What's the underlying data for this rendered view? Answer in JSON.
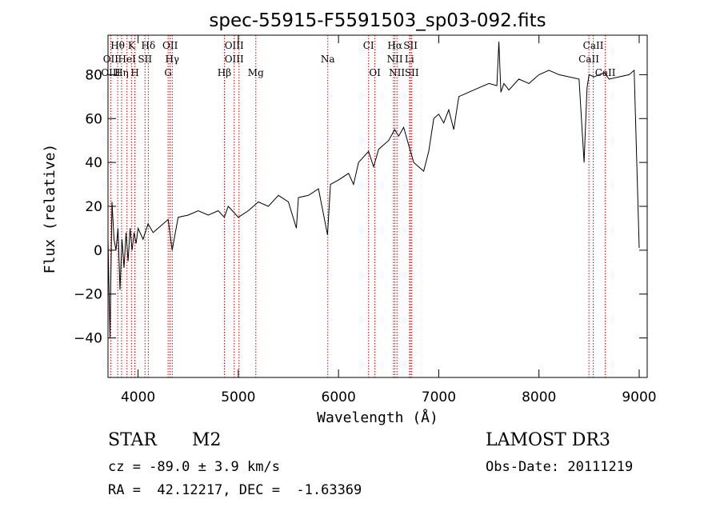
{
  "chart_data": {
    "type": "line",
    "title": "spec-55915-F5591503_sp03-092.fits",
    "xlabel": "Wavelength (Å)",
    "ylabel": "Flux (relative)",
    "xlim": [
      3700,
      9080
    ],
    "ylim": [
      -58,
      98
    ],
    "xticks": [
      4000,
      5000,
      6000,
      7000,
      8000,
      9000
    ],
    "yticks": [
      -40,
      -20,
      0,
      20,
      40,
      60,
      80
    ],
    "grid": false,
    "series": [
      {
        "x": [
          3700,
          3720,
          3740,
          3760,
          3780,
          3800,
          3820,
          3840,
          3860,
          3880,
          3900,
          3920,
          3940,
          3960,
          3980,
          4000,
          4050,
          4100,
          4150,
          4200,
          4250,
          4300,
          4340,
          4400,
          4500,
          4600,
          4700,
          4800,
          4861,
          4900,
          5000,
          5100,
          5200,
          5300,
          5400,
          5500,
          5580,
          5600,
          5700,
          5800,
          5890,
          5920,
          6000,
          6100,
          6150,
          6200,
          6300,
          6350,
          6400,
          6500,
          6560,
          6600,
          6650,
          6700,
          6750,
          6800,
          6850,
          6900,
          6950,
          7000,
          7050,
          7100,
          7150,
          7200,
          7300,
          7400,
          7500,
          7580,
          7600,
          7620,
          7650,
          7700,
          7800,
          7900,
          8000,
          8100,
          8200,
          8300,
          8400,
          8450,
          8480,
          8500,
          8550,
          8600,
          8650,
          8700,
          8800,
          8900,
          8950,
          9000
        ],
        "values": [
          5,
          -40,
          22,
          5,
          0,
          10,
          -18,
          5,
          -8,
          8,
          -5,
          10,
          0,
          8,
          3,
          10,
          5,
          12,
          8,
          10,
          12,
          14,
          0,
          15,
          16,
          18,
          16,
          18,
          15,
          20,
          15,
          18,
          22,
          20,
          25,
          22,
          10,
          24,
          25,
          28,
          7,
          30,
          32,
          35,
          30,
          40,
          45,
          38,
          46,
          50,
          55,
          52,
          56,
          48,
          40,
          38,
          36,
          45,
          60,
          62,
          58,
          64,
          55,
          70,
          72,
          74,
          76,
          75,
          95,
          72,
          76,
          73,
          78,
          76,
          80,
          82,
          80,
          79,
          78,
          40,
          74,
          80,
          79,
          80,
          81,
          78,
          79,
          80,
          82,
          1
        ]
      }
    ],
    "line_labels": [
      {
        "label": "Hθ",
        "x": 3797,
        "row": 1
      },
      {
        "label": "K",
        "x": 3934,
        "row": 1
      },
      {
        "label": "Hδ",
        "x": 4102,
        "row": 1
      },
      {
        "label": "OII",
        "x": 4320,
        "row": 1
      },
      {
        "label": "OIII",
        "x": 4959,
        "row": 1
      },
      {
        "label": "CI",
        "x": 6300,
        "row": 1
      },
      {
        "label": "Hα",
        "x": 6563,
        "row": 1
      },
      {
        "label": "SII",
        "x": 6718,
        "row": 1
      },
      {
        "label": "CaII",
        "x": 8542,
        "row": 1
      },
      {
        "label": "OII",
        "x": 3727,
        "row": 2
      },
      {
        "label": "HeI",
        "x": 3889,
        "row": 2
      },
      {
        "label": "SII",
        "x": 4069,
        "row": 2
      },
      {
        "label": "Hγ",
        "x": 4341,
        "row": 2
      },
      {
        "label": "OIII",
        "x": 4959,
        "row": 2
      },
      {
        "label": "Na",
        "x": 5893,
        "row": 2
      },
      {
        "label": "NII",
        "x": 6563,
        "row": 2
      },
      {
        "label": "Li",
        "x": 6708,
        "row": 2
      },
      {
        "label": "CaII",
        "x": 8498,
        "row": 2
      },
      {
        "label": "OIII",
        "x": 3727,
        "row": 3
      },
      {
        "label": "Hη",
        "x": 3835,
        "row": 3
      },
      {
        "label": "H",
        "x": 3968,
        "row": 3
      },
      {
        "label": "G",
        "x": 4300,
        "row": 3
      },
      {
        "label": "Hβ",
        "x": 4861,
        "row": 3
      },
      {
        "label": "Mg",
        "x": 5175,
        "row": 3
      },
      {
        "label": "OI",
        "x": 6363,
        "row": 3
      },
      {
        "label": "NII",
        "x": 6583,
        "row": 3
      },
      {
        "label": "SII",
        "x": 6731,
        "row": 3
      },
      {
        "label": "CaII",
        "x": 8662,
        "row": 3
      }
    ],
    "line_markers": [
      3727,
      3797,
      3835,
      3889,
      3934,
      3968,
      4069,
      4102,
      4300,
      4320,
      4341,
      4861,
      4959,
      5007,
      5175,
      5893,
      6300,
      6363,
      6548,
      6563,
      6583,
      6708,
      6718,
      6731,
      8498,
      8542,
      8662
    ],
    "marker_color": "#cc0000"
  },
  "info": {
    "class_label": "STAR",
    "subclass_label": "M2",
    "cz_text": "cz = -89.0 ± 3.9 km/s",
    "coords_text": "RA =  42.12217, DEC =  -1.63369",
    "survey": "LAMOST DR3",
    "obs_date": "Obs-Date: 20111219"
  }
}
